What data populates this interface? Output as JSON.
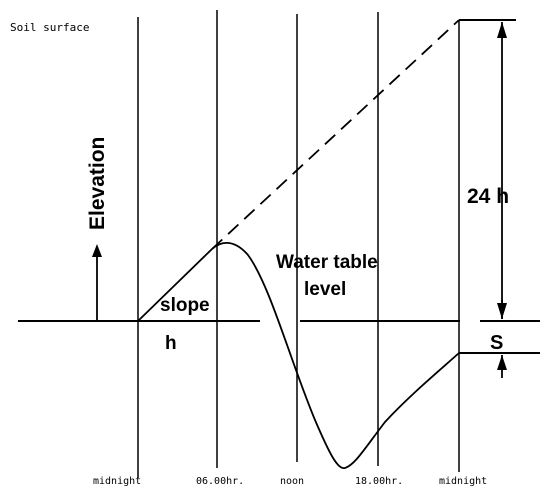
{
  "title": "",
  "labels": {
    "soil_surface": "Soil surface",
    "elevation": "Elevation",
    "slope": "slope",
    "h": "h",
    "water_table_line1": "Water table",
    "water_table_line2": "level",
    "twenty_four_h": "24 h",
    "s": "S"
  },
  "time_axis": {
    "ticks": [
      "midnight",
      "06.00hr.",
      "noon",
      "18.00hr.",
      "midnight"
    ]
  },
  "curves": {
    "slope_line": "dashed extrapolation of initial rise",
    "water_table": "solid curve: rise, peak before 06.00hr., fall to minimum after noon, recovery to midnight"
  }
}
